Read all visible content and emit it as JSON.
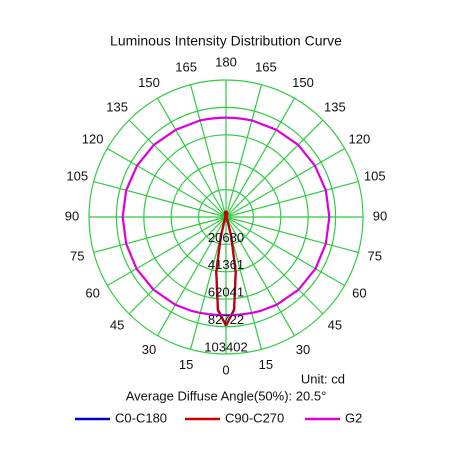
{
  "chart_data": {
    "type": "polar",
    "title": "Luminous Intensity Distribution Curve",
    "unit_label": "Unit: cd",
    "annotation": "Average Diffuse Angle(50%): 20.5°",
    "grid_color": "#2ecc40",
    "rlim": [
      0,
      103402
    ],
    "rticks": [
      20680,
      41361,
      62041,
      82722,
      103402
    ],
    "thetaticks": [
      0,
      15,
      30,
      45,
      60,
      75,
      90,
      105,
      120,
      135,
      150,
      165,
      180
    ],
    "angles": [
      0,
      5,
      10,
      15,
      20,
      30,
      45,
      60,
      75,
      90,
      105,
      120,
      135,
      150,
      165,
      170,
      175,
      180
    ],
    "series": [
      {
        "name": "C0-C180",
        "color": "#0000cc",
        "values": [
          82000,
          70000,
          42000,
          15000,
          4000,
          1500,
          800,
          600,
          500,
          500,
          500,
          600,
          800,
          1500,
          3000,
          3600,
          3900,
          4000
        ]
      },
      {
        "name": "C90-C270",
        "color": "#cc0000",
        "values": [
          82000,
          70500,
          42500,
          15500,
          4200,
          1600,
          850,
          650,
          550,
          520,
          520,
          620,
          850,
          1600,
          3100,
          3700,
          4000,
          4100
        ]
      },
      {
        "name": "G2",
        "color": "#dd00dd",
        "values": [
          74000,
          74200,
          74500,
          75000,
          75500,
          76500,
          77500,
          78000,
          78000,
          78000,
          78000,
          77500,
          77000,
          76000,
          75500,
          75200,
          75000,
          75000
        ]
      }
    ]
  }
}
